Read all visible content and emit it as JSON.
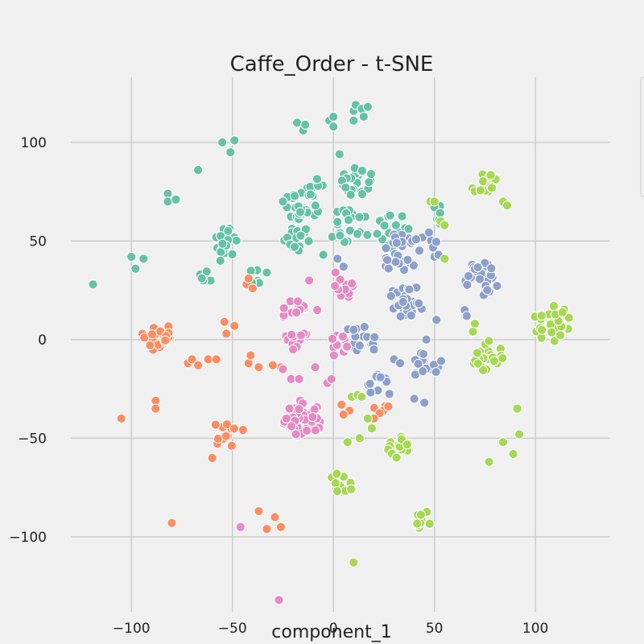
{
  "chart_data": {
    "type": "scatter",
    "title": "Caffe_Order - t-SNE",
    "xlabel": "component_1",
    "ylabel": "",
    "xlim": [
      -130,
      137
    ],
    "ylim": [
      -138,
      133
    ],
    "xticks": [
      -100,
      -50,
      0,
      50,
      100
    ],
    "xtick_labels": [
      "−100",
      "−50",
      "0",
      "50",
      "100"
    ],
    "yticks": [
      -100,
      -50,
      0,
      50,
      100
    ],
    "ytick_labels": [
      "−100",
      "−50",
      "0",
      "50",
      "100"
    ],
    "grid": true,
    "legend": "right (clipped)",
    "series": [
      {
        "color": "#66c2a5",
        "clusters": [
          {
            "cx": -15,
            "cy": 69,
            "r": 9,
            "n": 28
          },
          {
            "cx": 12,
            "cy": 80,
            "r": 8,
            "n": 24
          },
          {
            "cx": -52,
            "cy": 50,
            "r": 7,
            "n": 16
          },
          {
            "cx": -18,
            "cy": 51,
            "r": 7,
            "n": 16
          },
          {
            "cx": 8,
            "cy": 57,
            "r": 10,
            "n": 22
          },
          {
            "cx": 30,
            "cy": 55,
            "r": 9,
            "n": 18
          },
          {
            "cx": 52,
            "cy": 63,
            "r": 5,
            "n": 8
          },
          {
            "cx": -8,
            "cy": 77,
            "r": 5,
            "n": 6
          },
          {
            "cx": -62,
            "cy": 33,
            "r": 5,
            "n": 6
          },
          {
            "cx": -38,
            "cy": 33,
            "r": 5,
            "n": 6
          }
        ],
        "points": [
          [
            -119,
            28
          ],
          [
            -100,
            42
          ],
          [
            -98,
            36
          ],
          [
            -94,
            41
          ],
          [
            -82,
            74
          ],
          [
            -82,
            70
          ],
          [
            -78,
            71
          ],
          [
            -67,
            86
          ],
          [
            -56,
            40
          ],
          [
            -55,
            100
          ],
          [
            -51,
            95
          ],
          [
            -49,
            101
          ],
          [
            -18,
            110
          ],
          [
            -15,
            106
          ],
          [
            -14,
            109
          ],
          [
            -2,
            111
          ],
          [
            0,
            113
          ],
          [
            0,
            108
          ],
          [
            10,
            116
          ],
          [
            11,
            119
          ],
          [
            14,
            117
          ],
          [
            17,
            118
          ],
          [
            10,
            111
          ],
          [
            15,
            113
          ],
          [
            3,
            94
          ],
          [
            -33,
            34
          ],
          [
            -5,
            43
          ],
          [
            -25,
            70
          ]
        ]
      },
      {
        "color": "#fc8d62",
        "clusters": [
          {
            "cx": -88,
            "cy": 2,
            "r": 8,
            "n": 22
          },
          {
            "cx": -52,
            "cy": -47,
            "r": 8,
            "n": 12
          },
          {
            "cx": 24,
            "cy": -35,
            "r": 4,
            "n": 5
          }
        ],
        "points": [
          [
            -105,
            -40
          ],
          [
            -88,
            -31
          ],
          [
            -88,
            -35
          ],
          [
            -80,
            -93
          ],
          [
            -72,
            -12
          ],
          [
            -70,
            -10
          ],
          [
            -67,
            -13
          ],
          [
            -62,
            -10
          ],
          [
            -60,
            -60
          ],
          [
            -58,
            -10
          ],
          [
            -54,
            9
          ],
          [
            -53,
            3
          ],
          [
            -49,
            7
          ],
          [
            -42,
            -12
          ],
          [
            -41,
            -8
          ],
          [
            -37,
            -14
          ],
          [
            -33,
            -96
          ],
          [
            -37,
            -87
          ],
          [
            -29,
            -90
          ],
          [
            -26,
            -95
          ],
          [
            -26,
            -14
          ],
          [
            -30,
            -13
          ],
          [
            -43,
            28
          ],
          [
            -40,
            26
          ],
          [
            -42,
            31
          ],
          [
            4,
            -33
          ],
          [
            8,
            -36
          ],
          [
            5,
            -38
          ],
          [
            20,
            -40
          ]
        ]
      },
      {
        "color": "#8da0cb",
        "clusters": [
          {
            "cx": 74,
            "cy": 31,
            "r": 9,
            "n": 26
          },
          {
            "cx": 36,
            "cy": 20,
            "r": 9,
            "n": 28
          },
          {
            "cx": 47,
            "cy": -14,
            "r": 8,
            "n": 18
          },
          {
            "cx": 32,
            "cy": 44,
            "r": 10,
            "n": 26
          },
          {
            "cx": 45,
            "cy": 50,
            "r": 6,
            "n": 10
          },
          {
            "cx": 14,
            "cy": 2,
            "r": 8,
            "n": 14
          },
          {
            "cx": 22,
            "cy": -24,
            "r": 7,
            "n": 10
          }
        ],
        "points": [
          [
            2,
            41
          ],
          [
            5,
            37
          ],
          [
            10,
            5
          ],
          [
            13,
            -3
          ],
          [
            20,
            -5
          ],
          [
            30,
            -10
          ],
          [
            33,
            -12
          ],
          [
            40,
            -30
          ],
          [
            45,
            -32
          ],
          [
            50,
            42
          ],
          [
            52,
            43
          ],
          [
            51,
            10
          ],
          [
            46,
            0
          ],
          [
            65,
            15
          ],
          [
            66,
            12
          ]
        ]
      },
      {
        "color": "#e78ac3",
        "clusters": [
          {
            "cx": -15,
            "cy": -40,
            "r": 10,
            "n": 44
          },
          {
            "cx": -20,
            "cy": 15,
            "r": 6,
            "n": 14
          },
          {
            "cx": -18,
            "cy": 2,
            "r": 6,
            "n": 12
          },
          {
            "cx": 5,
            "cy": 25,
            "r": 6,
            "n": 14
          },
          {
            "cx": 3,
            "cy": -3,
            "r": 6,
            "n": 12
          }
        ],
        "points": [
          [
            -46,
            -95
          ],
          [
            -27,
            -132
          ],
          [
            -9,
            -14
          ],
          [
            -25,
            -15
          ],
          [
            -21,
            -20
          ],
          [
            -17,
            -20
          ],
          [
            -20,
            -5
          ],
          [
            -3,
            -22
          ],
          [
            -1,
            -20
          ],
          [
            -8,
            15
          ],
          [
            -12,
            30
          ],
          [
            1,
            34
          ]
        ]
      },
      {
        "color": "#a6d854",
        "clusters": [
          {
            "cx": 108,
            "cy": 9,
            "r": 10,
            "n": 24
          },
          {
            "cx": 76,
            "cy": -8,
            "r": 8,
            "n": 22
          },
          {
            "cx": 32,
            "cy": -55,
            "r": 6,
            "n": 18
          },
          {
            "cx": 4,
            "cy": -73,
            "r": 6,
            "n": 12
          },
          {
            "cx": 45,
            "cy": -92,
            "r": 5,
            "n": 10
          },
          {
            "cx": 74,
            "cy": 80,
            "r": 7,
            "n": 14
          }
        ],
        "points": [
          [
            84,
            70
          ],
          [
            86,
            68
          ],
          [
            48,
            70
          ],
          [
            50,
            70
          ],
          [
            53,
            60
          ],
          [
            55,
            41
          ],
          [
            55,
            58
          ],
          [
            9,
            -29
          ],
          [
            12,
            -28
          ],
          [
            14,
            -29
          ],
          [
            17,
            -40
          ],
          [
            19,
            -45
          ],
          [
            7,
            -52
          ],
          [
            13,
            -50
          ],
          [
            10,
            -113
          ],
          [
            77,
            -62
          ],
          [
            84,
            -52
          ],
          [
            89,
            -58
          ],
          [
            91,
            -35
          ],
          [
            92,
            -48
          ],
          [
            70,
            8
          ],
          [
            69,
            4
          ]
        ]
      }
    ]
  }
}
